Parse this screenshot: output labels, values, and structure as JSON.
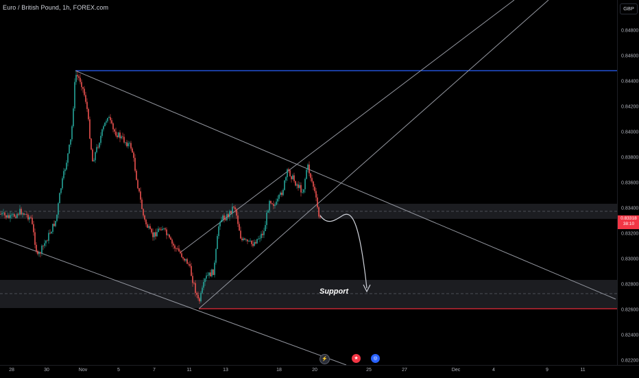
{
  "title": "Euro / British Pound, 1h, FOREX.com",
  "currency": "GBP",
  "price_axis": [
    "0.84800",
    "0.84600",
    "0.84400",
    "0.84200",
    "0.84000",
    "0.83800",
    "0.83600",
    "0.83400",
    "0.83200",
    "0.83000",
    "0.82800",
    "0.82600",
    "0.82400",
    "0.82200"
  ],
  "current_price": {
    "value": "0.83318",
    "countdown": "38:10"
  },
  "time_axis": [
    "28",
    "30",
    "Nov",
    "5",
    "7",
    "11",
    "13",
    "18",
    "20",
    "25",
    "27",
    "Dec",
    "4",
    "9",
    "11"
  ],
  "annotation": "Support",
  "events": [
    {
      "icon": "lightning-icon",
      "glyph": "⚡"
    },
    {
      "icon": "news-flag-icon",
      "glyph": "★"
    },
    {
      "icon": "dividend-icon",
      "glyph": "◎"
    }
  ],
  "colors": {
    "up": "#26a69a",
    "down": "#ef5350",
    "resistance": "#2962ff",
    "support": "#f23645",
    "trendline": "#9598a1"
  }
}
